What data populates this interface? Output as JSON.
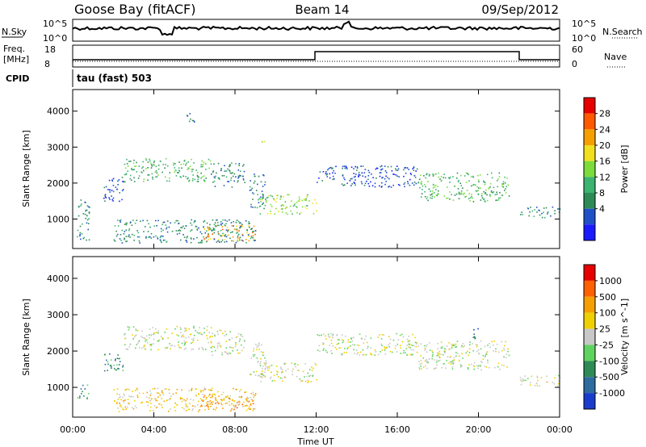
{
  "header": {
    "station": "Goose Bay (fitACF)",
    "beam": "Beam 14",
    "date": "09/Sep/2012"
  },
  "top_panels": {
    "nsky_label": "N.Sky",
    "nsky_ticks": [
      "10^5",
      "10^0"
    ],
    "nsearch_label": "N.Search",
    "nsearch_ticks": [
      "10^5",
      "10^0"
    ],
    "freq_label_1": "Freq.",
    "freq_label_2": "[MHz]",
    "freq_ticks": [
      "18",
      "8"
    ],
    "nave_label": "Nave",
    "nave_ticks": [
      "60",
      "0"
    ],
    "cpid_label": "CPID",
    "cpid_text": "tau (fast) 503"
  },
  "panels": {
    "ylabel": "Slant Range [km]",
    "xlabel": "Time UT",
    "x_ticks": [
      "00:00",
      "04:00",
      "08:00",
      "12:00",
      "16:00",
      "20:00",
      "00:00"
    ],
    "y_ticks": [
      "1000",
      "2000",
      "3000",
      "4000"
    ]
  },
  "colors": {
    "background": "#ffffff",
    "ground_scatter": "#c8c8c8"
  },
  "chart_data": [
    {
      "type": "heatmap",
      "panel": "power",
      "xlabel": "Time UT",
      "ylabel": "Slant Range [km]",
      "xlim": [
        0,
        24
      ],
      "ylim": [
        180,
        4600
      ],
      "colorbar": {
        "label": "Power [dB]",
        "ticks": [
          "4",
          "8",
          "12",
          "16",
          "20",
          "24",
          "28"
        ],
        "colors": [
          "#1a1aff",
          "#2050c8",
          "#2e8b57",
          "#3cb371",
          "#7cdc3c",
          "#f0e020",
          "#f5a000",
          "#ff5a00",
          "#e60000"
        ]
      },
      "regions": [
        {
          "t0": 0.2,
          "t1": 0.8,
          "r0": 400,
          "r1": 1600,
          "level": 2
        },
        {
          "t0": 1.5,
          "t1": 2.5,
          "r0": 1500,
          "r1": 2200,
          "level": 1
        },
        {
          "t0": 2.5,
          "t1": 6.8,
          "r0": 2050,
          "r1": 2700,
          "level": 3
        },
        {
          "t0": 6.8,
          "t1": 8.5,
          "r0": 1900,
          "r1": 2600,
          "level": 2
        },
        {
          "t0": 8.7,
          "t1": 9.5,
          "r0": 1300,
          "r1": 2300,
          "level": 2
        },
        {
          "t0": 9.2,
          "t1": 12.0,
          "r0": 1150,
          "r1": 1700,
          "level": 4
        },
        {
          "t0": 6.3,
          "t1": 9.0,
          "r0": 400,
          "r1": 850,
          "level": 6
        },
        {
          "t0": 2.0,
          "t1": 9.0,
          "r0": 350,
          "r1": 1000,
          "level": 2
        },
        {
          "t0": 12.0,
          "t1": 17.0,
          "r0": 1900,
          "r1": 2500,
          "level": 1
        },
        {
          "t0": 17.0,
          "t1": 21.5,
          "r0": 1500,
          "r1": 2300,
          "level": 3
        },
        {
          "t0": 22.0,
          "t1": 24.0,
          "r0": 1050,
          "r1": 1350,
          "level": 2
        },
        {
          "t0": 5.5,
          "t1": 6.0,
          "r0": 3700,
          "r1": 4000,
          "level": 1
        },
        {
          "t0": 9.3,
          "t1": 9.6,
          "r0": 3150,
          "r1": 3300,
          "level": 4
        }
      ]
    },
    {
      "type": "heatmap",
      "panel": "velocity",
      "xlabel": "Time UT",
      "ylabel": "Slant Range [km]",
      "xlim": [
        0,
        24
      ],
      "ylim": [
        180,
        4600
      ],
      "colorbar": {
        "label": "Velocity [m s^-1]",
        "ticks": [
          "1000",
          "500",
          "100",
          "25",
          "-25",
          "-100",
          "-500",
          "-1000"
        ],
        "colors": [
          "#1a3ccc",
          "#2e6b9e",
          "#2e8b57",
          "#5fd35f",
          "#c8c8c8",
          "#f0d000",
          "#f5a000",
          "#ff6000",
          "#e60000"
        ]
      },
      "regions": [
        {
          "t0": 0.2,
          "t1": 0.8,
          "r0": 700,
          "r1": 1100,
          "level": 2
        },
        {
          "t0": 1.5,
          "t1": 2.5,
          "r0": 1400,
          "r1": 2000,
          "level": 2
        },
        {
          "t0": 2.5,
          "t1": 6.8,
          "r0": 2050,
          "r1": 2700,
          "level": 4
        },
        {
          "t0": 6.8,
          "t1": 8.5,
          "r0": 1900,
          "r1": 2600,
          "level": 4
        },
        {
          "t0": 8.7,
          "t1": 9.5,
          "r0": 1300,
          "r1": 2300,
          "level": 4
        },
        {
          "t0": 9.2,
          "t1": 12.0,
          "r0": 1150,
          "r1": 1700,
          "level": 4
        },
        {
          "t0": 6.3,
          "t1": 9.0,
          "r0": 400,
          "r1": 850,
          "level": 6
        },
        {
          "t0": 2.0,
          "t1": 9.0,
          "r0": 350,
          "r1": 1000,
          "level": 5
        },
        {
          "t0": 12.0,
          "t1": 17.0,
          "r0": 1900,
          "r1": 2500,
          "level": 4
        },
        {
          "t0": 17.0,
          "t1": 21.5,
          "r0": 1500,
          "r1": 2300,
          "level": 4
        },
        {
          "t0": 19.5,
          "t1": 20.0,
          "r0": 2350,
          "r1": 2650,
          "level": 1
        },
        {
          "t0": 22.0,
          "t1": 24.0,
          "r0": 1050,
          "r1": 1350,
          "level": 4
        }
      ]
    }
  ]
}
